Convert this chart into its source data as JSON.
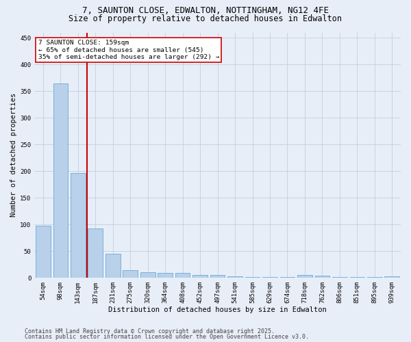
{
  "title_line1": "7, SAUNTON CLOSE, EDWALTON, NOTTINGHAM, NG12 4FE",
  "title_line2": "Size of property relative to detached houses in Edwalton",
  "xlabel": "Distribution of detached houses by size in Edwalton",
  "ylabel": "Number of detached properties",
  "categories": [
    "54sqm",
    "98sqm",
    "143sqm",
    "187sqm",
    "231sqm",
    "275sqm",
    "320sqm",
    "364sqm",
    "408sqm",
    "452sqm",
    "497sqm",
    "541sqm",
    "585sqm",
    "629sqm",
    "674sqm",
    "718sqm",
    "762sqm",
    "806sqm",
    "851sqm",
    "895sqm",
    "939sqm"
  ],
  "values": [
    98,
    365,
    196,
    93,
    45,
    14,
    10,
    9,
    9,
    6,
    5,
    3,
    2,
    1,
    1,
    5,
    4,
    1,
    1,
    1,
    3
  ],
  "bar_color": "#b8d0ea",
  "bar_edge_color": "#6aaad4",
  "red_line_x": 2.5,
  "annotation_line1": "7 SAUNTON CLOSE: 159sqm",
  "annotation_line2": "← 65% of detached houses are smaller (545)",
  "annotation_line3": "35% of semi-detached houses are larger (292) →",
  "annotation_box_color": "#ffffff",
  "annotation_box_edge_color": "#cc0000",
  "red_line_color": "#cc0000",
  "background_color": "#e8eef8",
  "plot_bg_color": "#e8eef8",
  "footer_line1": "Contains HM Land Registry data © Crown copyright and database right 2025.",
  "footer_line2": "Contains public sector information licensed under the Open Government Licence v3.0.",
  "ylim": [
    0,
    460
  ],
  "yticks": [
    0,
    50,
    100,
    150,
    200,
    250,
    300,
    350,
    400,
    450
  ],
  "grid_color": "#c0cfe0",
  "title_fontsize": 9,
  "subtitle_fontsize": 8.5,
  "axis_label_fontsize": 7.5,
  "tick_fontsize": 6.5,
  "annotation_fontsize": 6.8,
  "footer_fontsize": 6.0
}
